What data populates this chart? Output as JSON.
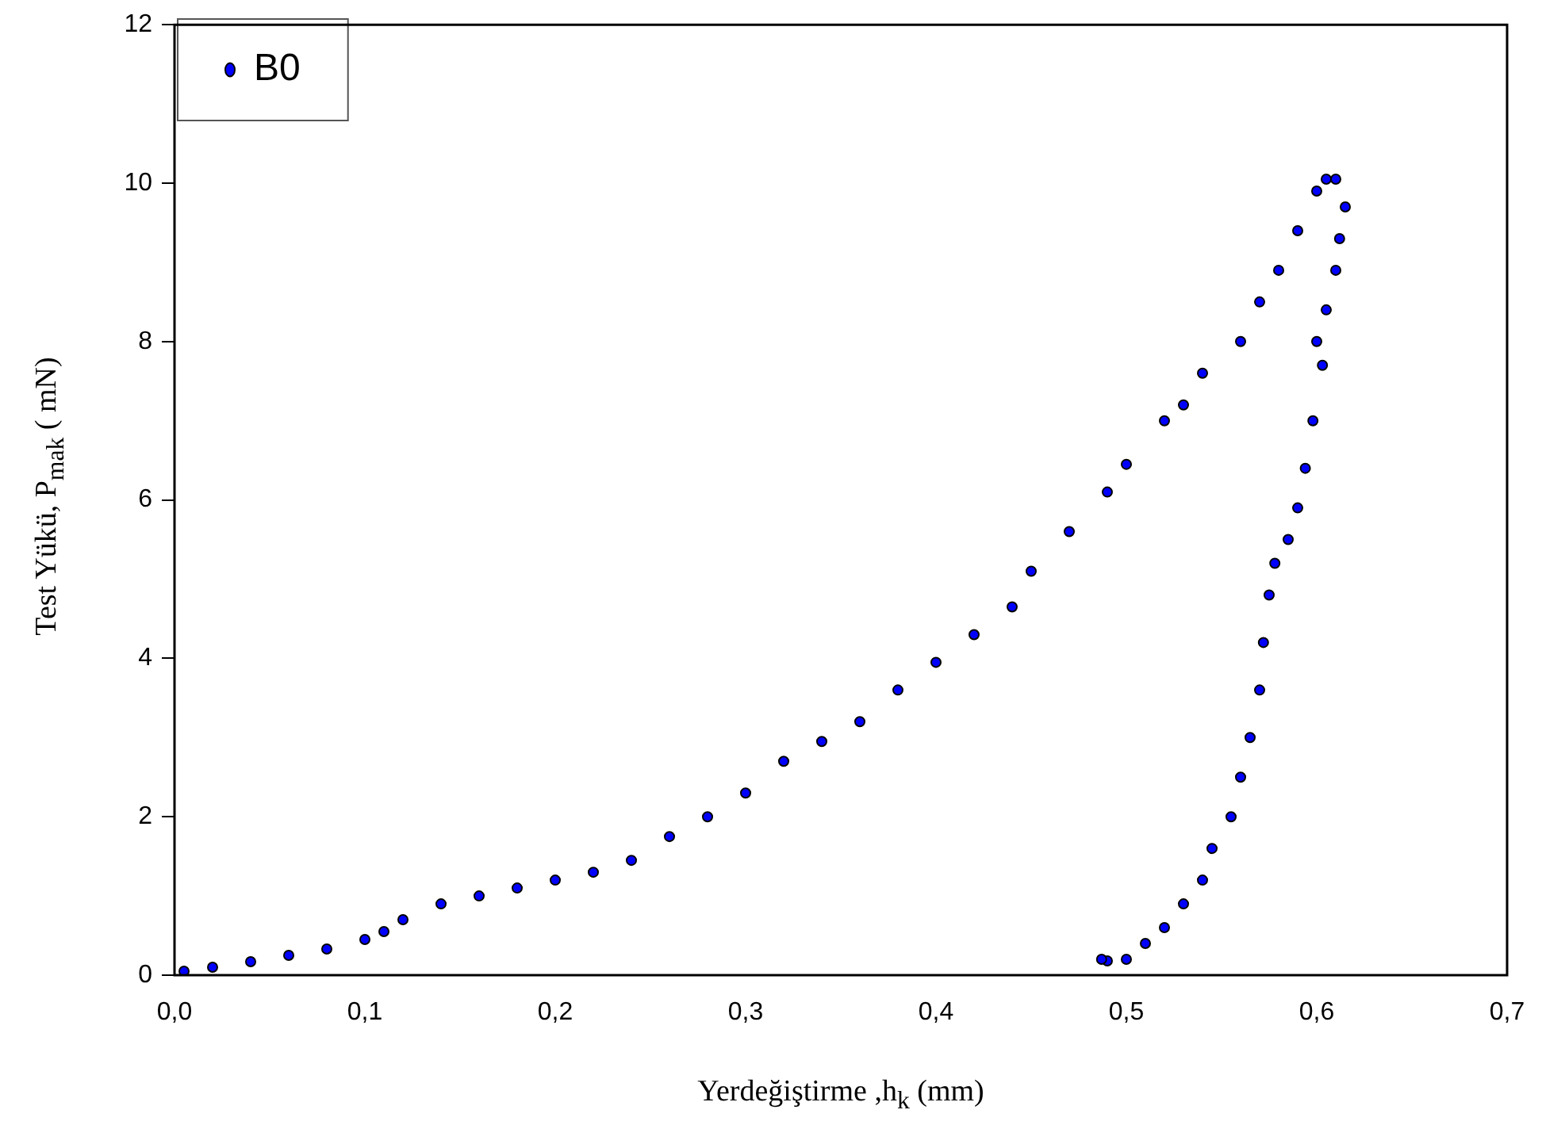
{
  "chart_data": {
    "type": "scatter",
    "xlabel": "Yerdeğiştirme ,h$_{k}$ (mm)",
    "ylabel": "Test Yükü, P$_{mak}$  ( mN)",
    "xlim": [
      0,
      0.7
    ],
    "xticks": [
      {
        "value": 0,
        "label": "0,0"
      },
      {
        "value": 0.1,
        "label": "0,1"
      },
      {
        "value": 0.2,
        "label": "0,2"
      },
      {
        "value": 0.3,
        "label": "0,3"
      },
      {
        "value": 0.4,
        "label": "0,4"
      },
      {
        "value": 0.5,
        "label": "0,5"
      },
      {
        "value": 0.6,
        "label": "0,6"
      },
      {
        "value": 0.7,
        "label": "0,7"
      }
    ],
    "ylim": [
      0,
      12
    ],
    "yticks": [
      0,
      2,
      4,
      6,
      8,
      10,
      12
    ],
    "grid": false,
    "legend": "top left",
    "marker": "circle",
    "series": [
      {
        "name": "B0",
        "color": "#0000ff",
        "x": [
          0.005,
          0.02,
          0.04,
          0.06,
          0.08,
          0.1,
          0.11,
          0.12,
          0.14,
          0.16,
          0.18,
          0.2,
          0.22,
          0.24,
          0.26,
          0.28,
          0.3,
          0.32,
          0.34,
          0.36,
          0.38,
          0.4,
          0.42,
          0.44,
          0.45,
          0.47,
          0.49,
          0.5,
          0.52,
          0.53,
          0.54,
          0.56,
          0.57,
          0.58,
          0.59,
          0.6,
          0.605,
          0.61,
          0.615,
          0.612,
          0.61,
          0.605,
          0.6,
          0.603,
          0.598,
          0.594,
          0.59,
          0.585,
          0.578,
          0.575,
          0.572,
          0.57,
          0.565,
          0.56,
          0.555,
          0.545,
          0.54,
          0.53,
          0.52,
          0.51,
          0.5,
          0.49,
          0.487
        ],
        "values": [
          0.05,
          0.1,
          0.17,
          0.25,
          0.33,
          0.45,
          0.55,
          0.7,
          0.9,
          1.0,
          1.1,
          1.2,
          1.3,
          1.45,
          1.75,
          2.0,
          2.3,
          2.7,
          2.95,
          3.2,
          3.6,
          3.95,
          4.3,
          4.65,
          5.1,
          5.6,
          6.1,
          6.45,
          7.0,
          7.2,
          7.6,
          8.0,
          8.5,
          8.9,
          9.4,
          9.9,
          10.05,
          10.05,
          9.7,
          9.3,
          8.9,
          8.4,
          8.0,
          7.7,
          7.0,
          6.4,
          5.9,
          5.5,
          5.2,
          4.8,
          4.2,
          3.6,
          3.0,
          2.5,
          2.0,
          1.6,
          1.2,
          0.9,
          0.6,
          0.4,
          0.2,
          0.18,
          0.2
        ]
      }
    ]
  }
}
